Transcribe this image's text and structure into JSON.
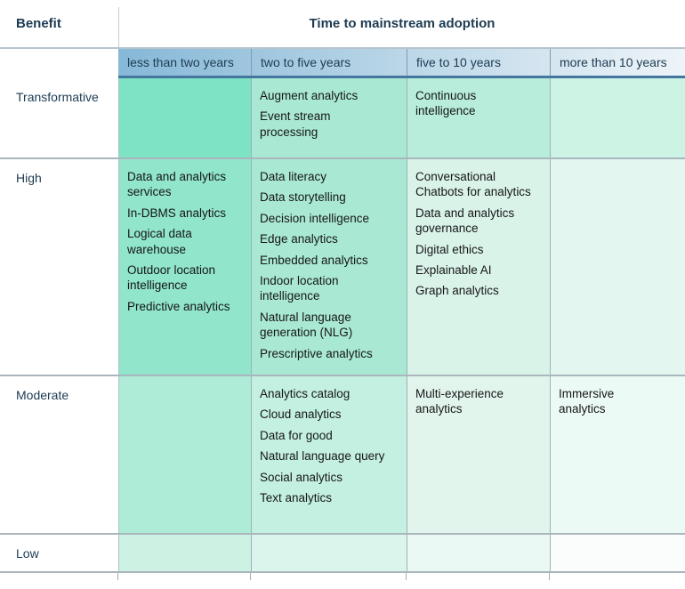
{
  "chart_data": {
    "type": "table",
    "title": "Time to mainstream adoption",
    "row_axis_label": "Benefit",
    "columns": [
      "less than two years",
      "two to five years",
      "five to 10 years",
      "more than 10 years"
    ],
    "rows": [
      {
        "label": "Transformative",
        "cells": [
          [],
          [
            "Augment analytics",
            "Event stream processing"
          ],
          [
            "Continuous intelligence"
          ],
          []
        ]
      },
      {
        "label": "High",
        "cells": [
          [
            "Data and analytics services",
            "In-DBMS analytics",
            "Logical data warehouse",
            "Outdoor location intelligence",
            "Predictive analytics"
          ],
          [
            "Data literacy",
            "Data storytelling",
            "Decision intelligence",
            "Edge analytics",
            "Embedded analytics",
            "Indoor location intelligence",
            "Natural language generation (NLG)",
            "Prescriptive analytics"
          ],
          [
            "Conversational Chatbots for analytics",
            "Data and analytics governance",
            "Digital ethics",
            "Explainable AI",
            "Graph analytics"
          ],
          []
        ]
      },
      {
        "label": "Moderate",
        "cells": [
          [],
          [
            "Analytics catalog",
            "Cloud analytics",
            "Data for good",
            "Natural language query",
            "Social analytics",
            "Text analytics"
          ],
          [
            "Multi-experience analytics"
          ],
          [
            "Immersive analytics"
          ]
        ]
      },
      {
        "label": "Low",
        "cells": [
          [],
          [],
          [],
          []
        ]
      }
    ]
  },
  "colors": {
    "header_gradient_start": "#86b8d7",
    "header_gradient_end": "#eef4f8",
    "header_underline": "#44769f",
    "top_border": "#b8c4cb",
    "head_divider": "#c3ccd2",
    "row_border": "#a9b6bd",
    "col_border": "#9cb2b8",
    "label_text": "#1c3b52",
    "cell_text": "#161616",
    "cell_colors": [
      [
        "#7ee2c4",
        "#a9e9d4",
        "#b7edda",
        "#cdf3e5"
      ],
      [
        "#90e5cb",
        "#a9e9d4",
        "#d9f3e9",
        "#e3f7f0"
      ],
      [
        "#aeecd7",
        "#c3f0e1",
        "#e1f5ed",
        "#ecfaf5"
      ],
      [
        "#cdf1e3",
        "#dcf5ec",
        "#eaf9f3",
        "#fbfdfd"
      ]
    ]
  }
}
